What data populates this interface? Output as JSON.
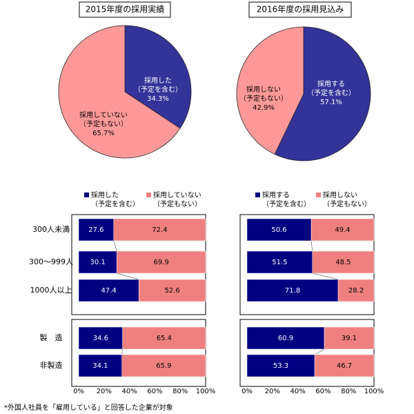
{
  "chart_data": [
    {
      "type": "pie",
      "title": "2015年度の採用実績",
      "slices": [
        {
          "label1": "採用した",
          "label2": "（予定を含む）",
          "value": 34.3,
          "value_text": "34.3%",
          "color": "#333399"
        },
        {
          "label1": "採用していない",
          "label2": "（予定もない）",
          "value": 65.7,
          "value_text": "65.7%",
          "color": "#ff9999"
        }
      ]
    },
    {
      "type": "pie",
      "title": "2016年度の採用見込み",
      "slices": [
        {
          "label1": "採用する",
          "label2": "（予定を含む）",
          "value": 57.1,
          "value_text": "57.1%",
          "color": "#333399"
        },
        {
          "label1": "採用しない",
          "label2": "（予定もない）",
          "value": 42.9,
          "value_text": "42.9%",
          "color": "#ff9999"
        }
      ]
    },
    {
      "type": "bar",
      "stacked": true,
      "orientation": "horizontal",
      "legend": [
        {
          "label1": "採用した",
          "label2": "（予定を含む）",
          "color": "#000080"
        },
        {
          "label1": "採用していない",
          "label2": "（予定もない）",
          "color": "#f08080"
        }
      ],
      "groups": [
        {
          "categories": [
            "300人未満",
            "300～999人",
            "1000人以上"
          ],
          "a": [
            27.6,
            30.1,
            47.4
          ],
          "b": [
            72.4,
            69.9,
            52.6
          ]
        },
        {
          "categories": [
            "製　造",
            "非製造"
          ],
          "a": [
            34.6,
            34.1
          ],
          "b": [
            65.4,
            65.9
          ]
        }
      ],
      "xlim": [
        0,
        100
      ],
      "xticks": [
        "0%",
        "20%",
        "40%",
        "60%",
        "80%",
        "100%"
      ]
    },
    {
      "type": "bar",
      "stacked": true,
      "orientation": "horizontal",
      "legend": [
        {
          "label1": "採用する",
          "label2": "（予定を含む）",
          "color": "#000080"
        },
        {
          "label1": "採用しない",
          "label2": "（予定もない）",
          "color": "#f08080"
        }
      ],
      "groups": [
        {
          "a": [
            50.6,
            51.5,
            71.8
          ],
          "b": [
            49.4,
            48.5,
            28.2
          ]
        },
        {
          "a": [
            60.9,
            53.3
          ],
          "b": [
            39.1,
            46.7
          ]
        }
      ],
      "xlim": [
        0,
        100
      ],
      "xticks": [
        "0%",
        "20%",
        "40%",
        "60%",
        "80%",
        "100%"
      ]
    }
  ],
  "footnote": "*外国人社員を「雇用している」と回答した企業が対象"
}
